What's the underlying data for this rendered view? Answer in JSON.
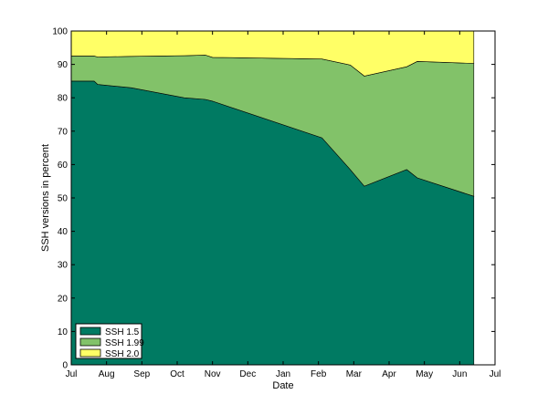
{
  "chart_data": {
    "type": "area",
    "stacked": true,
    "xlabel": "Date",
    "ylabel": "SSH versions in percent",
    "ylim": [
      0,
      100
    ],
    "yticks": [
      0,
      10,
      20,
      30,
      40,
      50,
      60,
      70,
      80,
      90,
      100
    ],
    "xlim": [
      0,
      12
    ],
    "xticks": [
      {
        "x": 0,
        "label": "Jul"
      },
      {
        "x": 1,
        "label": "Aug"
      },
      {
        "x": 2,
        "label": "Sep"
      },
      {
        "x": 3,
        "label": "Oct"
      },
      {
        "x": 4,
        "label": "Nov"
      },
      {
        "x": 5,
        "label": "Dec"
      },
      {
        "x": 6,
        "label": "Jan"
      },
      {
        "x": 7,
        "label": "Feb"
      },
      {
        "x": 8,
        "label": "Mar"
      },
      {
        "x": 9,
        "label": "Apr"
      },
      {
        "x": 10,
        "label": "May"
      },
      {
        "x": 11,
        "label": "Jun"
      },
      {
        "x": 12,
        "label": "Jul"
      }
    ],
    "x": [
      0,
      0.65,
      0.75,
      1.7,
      3.2,
      3.8,
      4.0,
      7.1,
      7.9,
      8.3,
      9.5,
      9.8,
      11.4
    ],
    "series": [
      {
        "name": "SSH 1.5",
        "color": "#007a62",
        "values": [
          85,
          85,
          84,
          83,
          80,
          79.5,
          79,
          68,
          58.5,
          53.5,
          58.5,
          56,
          50.5
        ]
      },
      {
        "name": "SSH 1.99",
        "color": "#82c269",
        "values": [
          7.5,
          7.5,
          8.2,
          9.4,
          12.6,
          13.3,
          13.1,
          23.6,
          31.3,
          33,
          30.8,
          34.9,
          39.8
        ]
      },
      {
        "name": "SSH 2.0",
        "color": "#ffff66",
        "values": [
          7.5,
          7.5,
          7.8,
          7.6,
          7.4,
          7.2,
          7.9,
          8.4,
          10.2,
          13.5,
          10.7,
          9.1,
          9.7
        ]
      }
    ],
    "legend": "bottom-left",
    "grid": false
  }
}
